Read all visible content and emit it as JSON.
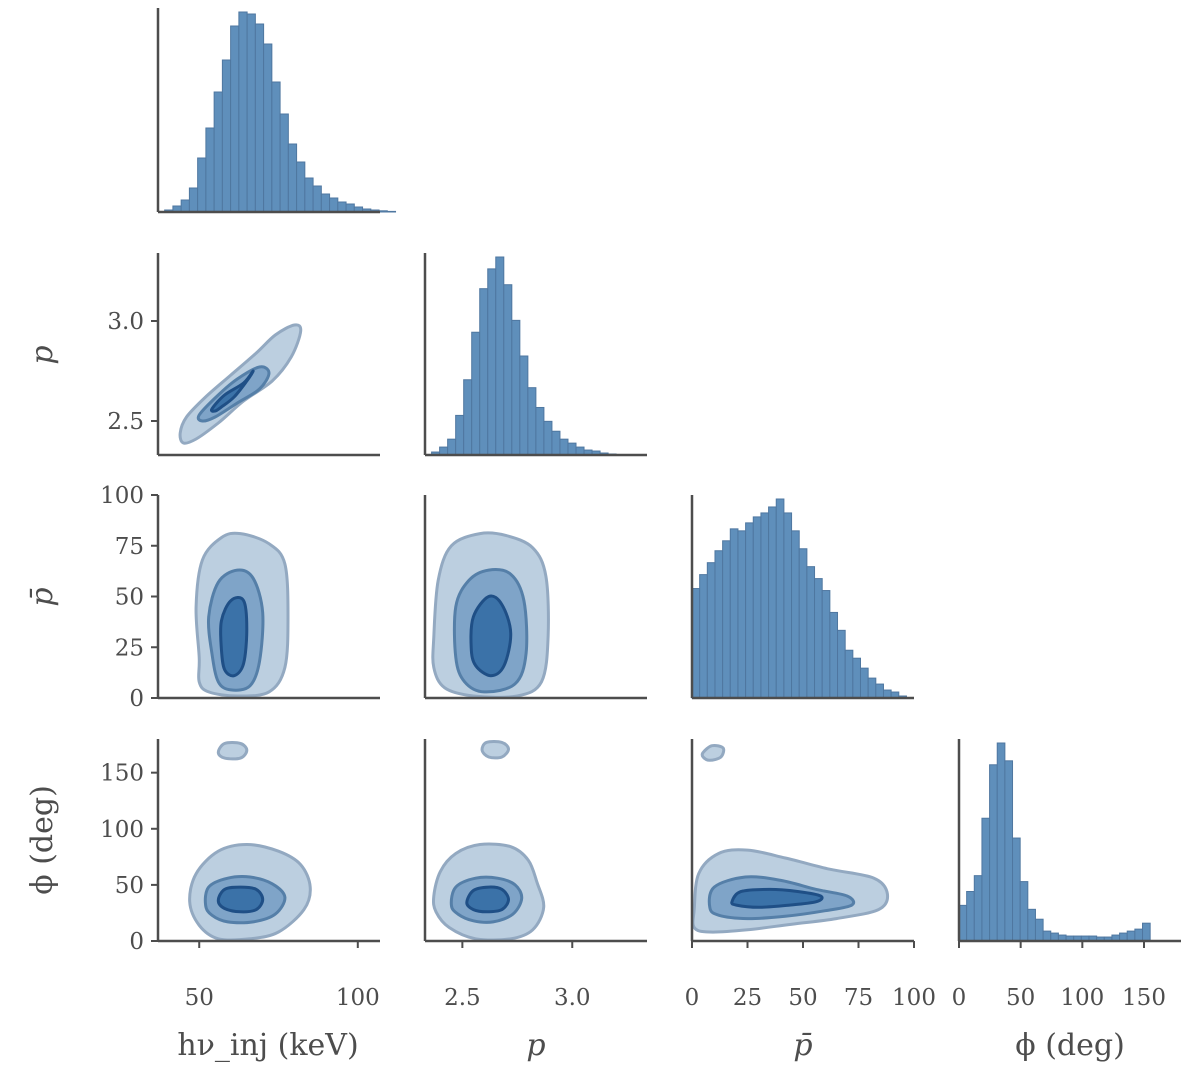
{
  "chart_data": {
    "type": "corner",
    "title": "",
    "colors": {
      "bar_fill": "#5f8fbb",
      "bar_edge": "#4f77a0",
      "axis": "#4d4d4d",
      "contour_levels": [
        "#bccfe0",
        "#7fa4c8",
        "#3b72a8"
      ],
      "contour_edges": [
        "#93a9c1",
        "#557fa8",
        "#1f4f86"
      ]
    },
    "variables": [
      {
        "key": "hnu",
        "label": "hν_inj (keV)",
        "range": [
          37,
          107
        ],
        "ticks": [
          50,
          100
        ],
        "tick_labels": [
          "50",
          "100"
        ]
      },
      {
        "key": "p",
        "label": "p",
        "range": [
          2.33,
          3.34
        ],
        "ticks": [
          2.5,
          3.0
        ],
        "tick_labels": [
          "2.5",
          "3.0"
        ]
      },
      {
        "key": "pbar",
        "label": "p̄",
        "range": [
          0,
          100
        ],
        "ticks": [
          0,
          25,
          50,
          75,
          100
        ],
        "tick_labels": [
          "0",
          "25",
          "50",
          "75",
          "100"
        ]
      },
      {
        "key": "phi",
        "label": "ϕ (deg)",
        "range": [
          0,
          180
        ],
        "ticks": [
          0,
          50,
          100,
          150
        ],
        "tick_labels": [
          "0",
          "50",
          "100",
          "150"
        ]
      }
    ],
    "y_ticks": {
      "p": {
        "ticks": [
          2.5,
          3.0
        ],
        "tick_labels": [
          "2.5",
          "3.0"
        ]
      },
      "pbar": {
        "ticks": [
          0,
          25,
          50,
          75,
          100
        ],
        "tick_labels": [
          "0",
          "25",
          "50",
          "75",
          "100"
        ]
      },
      "phi": {
        "ticks": [
          0,
          50,
          100,
          150
        ],
        "tick_labels": [
          "0",
          "50",
          "100",
          "150"
        ]
      }
    },
    "histograms": {
      "hnu": {
        "bin_start": 39.1,
        "bin_width": 2.6,
        "counts": [
          1,
          3,
          6,
          12,
          27,
          42,
          60,
          76,
          93,
          100,
          99,
          94,
          84,
          65,
          49,
          34,
          25,
          17,
          13,
          9,
          7,
          5,
          4,
          2.5,
          1.5,
          1,
          0.6,
          0.3
        ]
      },
      "p": {
        "bin_start": 2.36,
        "bin_width": 0.0365,
        "counts": [
          1.5,
          4,
          8,
          20,
          38,
          62,
          84,
          94,
          100,
          86,
          68,
          50,
          34,
          24,
          17,
          12,
          8,
          6,
          4,
          2.5,
          2,
          1,
          0.5
        ]
      },
      "pbar": {
        "bin_start": 0,
        "bin_width": 3.45,
        "counts": [
          55,
          62,
          68,
          74,
          79,
          85,
          84,
          88,
          91,
          93,
          96,
          100,
          93,
          84,
          75,
          66,
          60,
          54,
          43,
          34,
          24,
          20,
          15,
          10,
          7,
          4,
          3,
          1
        ]
      },
      "phi": {
        "bin_start": 0,
        "bin_width": 6.2,
        "counts": [
          18,
          25,
          33,
          62,
          89,
          100,
          91,
          52,
          30,
          16,
          11,
          5,
          4,
          3,
          2.5,
          2.5,
          2.5,
          2.5,
          2,
          2,
          3,
          4,
          5,
          6,
          9
        ]
      }
    },
    "contours_note": "2D panels show 3 nested highest-density contour levels (light to dark) for each variable pair",
    "contours": {
      "hnu_p": [
        [
          [
            44,
            2.44
          ],
          [
            46,
            2.52
          ],
          [
            52,
            2.62
          ],
          [
            60,
            2.73
          ],
          [
            68,
            2.84
          ],
          [
            74,
            2.93
          ],
          [
            80,
            2.98
          ],
          [
            82,
            2.95
          ],
          [
            79,
            2.82
          ],
          [
            73,
            2.7
          ],
          [
            64,
            2.6
          ],
          [
            56,
            2.49
          ],
          [
            49,
            2.41
          ],
          [
            45,
            2.39
          ]
        ],
        [
          [
            50,
            2.53
          ],
          [
            56,
            2.63
          ],
          [
            62,
            2.71
          ],
          [
            69,
            2.77
          ],
          [
            72,
            2.74
          ],
          [
            69,
            2.66
          ],
          [
            62,
            2.59
          ],
          [
            55,
            2.52
          ],
          [
            51,
            2.5
          ]
        ],
        [
          [
            54,
            2.56
          ],
          [
            58,
            2.63
          ],
          [
            64,
            2.69
          ],
          [
            67,
            2.75
          ],
          [
            65,
            2.7
          ],
          [
            61,
            2.62
          ],
          [
            57,
            2.57
          ],
          [
            55,
            2.55
          ]
        ]
      ],
      "hnu_pbar": [
        [
          [
            50,
            20
          ],
          [
            49,
            45
          ],
          [
            51,
            68
          ],
          [
            57,
            79
          ],
          [
            63,
            81
          ],
          [
            72,
            76
          ],
          [
            77,
            66
          ],
          [
            78,
            40
          ],
          [
            77,
            15
          ],
          [
            72,
            3
          ],
          [
            62,
            1
          ],
          [
            53,
            3
          ],
          [
            50,
            8
          ]
        ],
        [
          [
            54,
            22
          ],
          [
            53,
            40
          ],
          [
            56,
            57
          ],
          [
            62,
            63
          ],
          [
            67,
            59
          ],
          [
            70,
            42
          ],
          [
            69,
            18
          ],
          [
            66,
            6
          ],
          [
            60,
            4
          ],
          [
            56,
            8
          ]
        ],
        [
          [
            57,
            24
          ],
          [
            57,
            38
          ],
          [
            60,
            48
          ],
          [
            64,
            48
          ],
          [
            65,
            34
          ],
          [
            64,
            17
          ],
          [
            61,
            11
          ],
          [
            58,
            14
          ]
        ]
      ],
      "p_pbar": [
        [
          [
            2.37,
            30
          ],
          [
            2.39,
            58
          ],
          [
            2.45,
            75
          ],
          [
            2.58,
            81
          ],
          [
            2.7,
            80
          ],
          [
            2.82,
            74
          ],
          [
            2.88,
            60
          ],
          [
            2.89,
            30
          ],
          [
            2.86,
            8
          ],
          [
            2.75,
            1
          ],
          [
            2.55,
            1
          ],
          [
            2.42,
            5
          ],
          [
            2.37,
            15
          ]
        ],
        [
          [
            2.47,
            20
          ],
          [
            2.47,
            45
          ],
          [
            2.53,
            58
          ],
          [
            2.62,
            63
          ],
          [
            2.72,
            61
          ],
          [
            2.78,
            48
          ],
          [
            2.79,
            22
          ],
          [
            2.74,
            7
          ],
          [
            2.6,
            3
          ],
          [
            2.51,
            8
          ]
        ],
        [
          [
            2.54,
            25
          ],
          [
            2.55,
            40
          ],
          [
            2.62,
            50
          ],
          [
            2.68,
            46
          ],
          [
            2.72,
            32
          ],
          [
            2.69,
            16
          ],
          [
            2.63,
            11
          ],
          [
            2.56,
            16
          ]
        ]
      ],
      "pbar_phi": [
        [
          [
            1,
            28
          ],
          [
            3,
            60
          ],
          [
            12,
            78
          ],
          [
            25,
            81
          ],
          [
            42,
            74
          ],
          [
            62,
            64
          ],
          [
            82,
            56
          ],
          [
            88,
            42
          ],
          [
            84,
            28
          ],
          [
            65,
            20
          ],
          [
            45,
            15
          ],
          [
            25,
            10
          ],
          [
            8,
            8
          ],
          [
            1,
            12
          ]
        ],
        [
          [
            8,
            30
          ],
          [
            10,
            48
          ],
          [
            24,
            57
          ],
          [
            40,
            54
          ],
          [
            56,
            46
          ],
          [
            70,
            40
          ],
          [
            72,
            32
          ],
          [
            60,
            27
          ],
          [
            42,
            22
          ],
          [
            25,
            20
          ],
          [
            12,
            23
          ]
        ],
        [
          [
            18,
            35
          ],
          [
            22,
            44
          ],
          [
            35,
            46
          ],
          [
            48,
            44
          ],
          [
            58,
            40
          ],
          [
            56,
            35
          ],
          [
            44,
            32
          ],
          [
            30,
            30
          ],
          [
            20,
            32
          ]
        ],
        [
          [
            5,
            168
          ],
          [
            9,
            174
          ],
          [
            14,
            172
          ],
          [
            13,
            164
          ],
          [
            8,
            161
          ],
          [
            5,
            164
          ]
        ]
      ],
      "hnu_phi": [
        [
          [
            47,
            35
          ],
          [
            49,
            60
          ],
          [
            56,
            80
          ],
          [
            65,
            86
          ],
          [
            75,
            80
          ],
          [
            82,
            68
          ],
          [
            85,
            48
          ],
          [
            83,
            28
          ],
          [
            75,
            8
          ],
          [
            66,
            2
          ],
          [
            56,
            2
          ],
          [
            50,
            14
          ]
        ],
        [
          [
            52,
            32
          ],
          [
            53,
            48
          ],
          [
            59,
            56
          ],
          [
            66,
            57
          ],
          [
            73,
            51
          ],
          [
            77,
            39
          ],
          [
            74,
            24
          ],
          [
            67,
            17
          ],
          [
            59,
            17
          ],
          [
            54,
            23
          ]
        ],
        [
          [
            56,
            36
          ],
          [
            58,
            46
          ],
          [
            63,
            48
          ],
          [
            68,
            46
          ],
          [
            70,
            37
          ],
          [
            68,
            28
          ],
          [
            63,
            26
          ],
          [
            58,
            29
          ]
        ],
        [
          [
            56,
            168
          ],
          [
            58,
            176
          ],
          [
            63,
            176
          ],
          [
            65,
            170
          ],
          [
            63,
            163
          ],
          [
            58,
            163
          ]
        ]
      ],
      "p_phi": [
        [
          [
            2.37,
            40
          ],
          [
            2.4,
            62
          ],
          [
            2.47,
            78
          ],
          [
            2.58,
            86
          ],
          [
            2.72,
            84
          ],
          [
            2.8,
            72
          ],
          [
            2.84,
            52
          ],
          [
            2.87,
            30
          ],
          [
            2.82,
            10
          ],
          [
            2.72,
            2
          ],
          [
            2.56,
            2
          ],
          [
            2.44,
            12
          ],
          [
            2.38,
            26
          ]
        ],
        [
          [
            2.45,
            32
          ],
          [
            2.47,
            48
          ],
          [
            2.56,
            56
          ],
          [
            2.66,
            56
          ],
          [
            2.74,
            50
          ],
          [
            2.77,
            38
          ],
          [
            2.73,
            24
          ],
          [
            2.64,
            17
          ],
          [
            2.55,
            18
          ],
          [
            2.48,
            24
          ]
        ],
        [
          [
            2.52,
            34
          ],
          [
            2.55,
            45
          ],
          [
            2.62,
            48
          ],
          [
            2.68,
            46
          ],
          [
            2.71,
            37
          ],
          [
            2.68,
            28
          ],
          [
            2.61,
            26
          ],
          [
            2.55,
            28
          ]
        ],
        [
          [
            2.59,
            170
          ],
          [
            2.61,
            177
          ],
          [
            2.68,
            177
          ],
          [
            2.71,
            171
          ],
          [
            2.68,
            164
          ],
          [
            2.62,
            164
          ]
        ]
      ]
    }
  }
}
